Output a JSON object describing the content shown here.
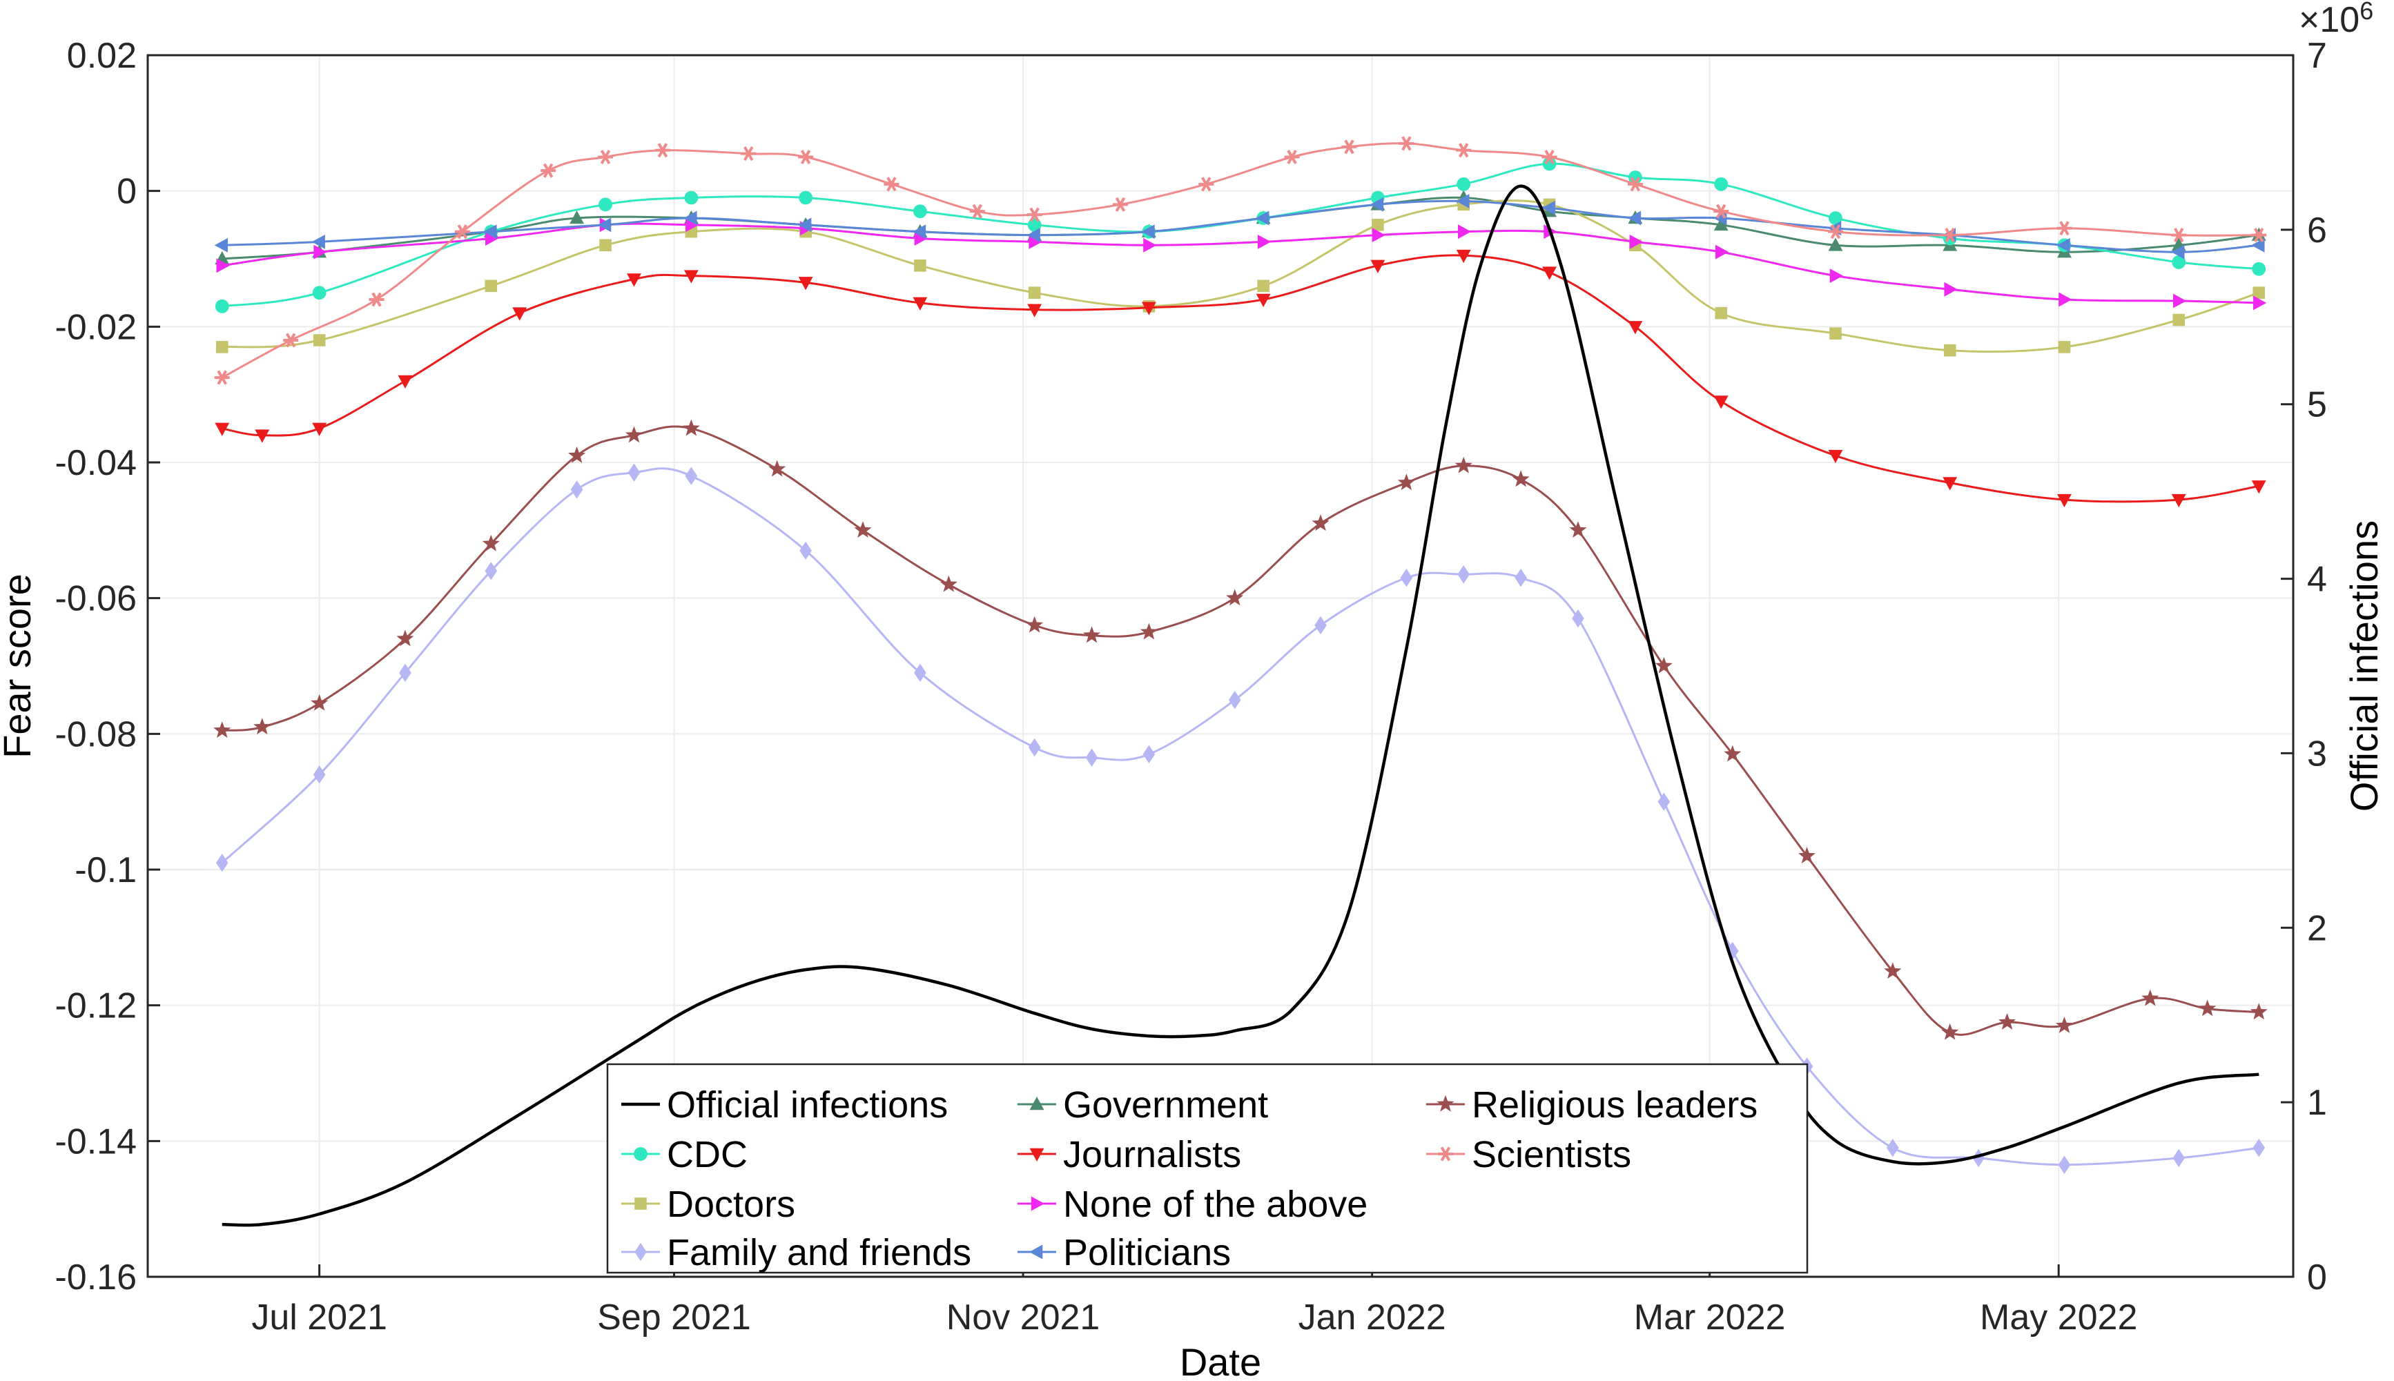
{
  "chart_data": {
    "type": "line",
    "title": "",
    "xlabel": "Date",
    "ylabel": "Fear score",
    "ylabel_right": "Official infections",
    "right_axis_exponent_label": "×10",
    "right_axis_exponent": "6",
    "x_tick_labels": [
      "Jul 2021",
      "Sep 2021",
      "Nov 2021",
      "Jan 2022",
      "Mar 2022",
      "May 2022"
    ],
    "x_tick_days": [
      15,
      77,
      138,
      199,
      258,
      319
    ],
    "xlim_days": [
      -15,
      360
    ],
    "ylim": [
      -0.16,
      0.02
    ],
    "y_ticks": [
      0.02,
      0,
      -0.02,
      -0.04,
      -0.06,
      -0.08,
      -0.1,
      -0.12,
      -0.14,
      -0.16
    ],
    "y_tick_labels": [
      "0.02",
      "0",
      "-0.02",
      "-0.04",
      "-0.06",
      "-0.08",
      "-0.1",
      "-0.12",
      "-0.14",
      "-0.16"
    ],
    "ylim_right": [
      0,
      7
    ],
    "y_ticks_right": [
      0,
      1,
      2,
      3,
      4,
      5,
      6,
      7
    ],
    "y_tick_labels_right": [
      "0",
      "1",
      "2",
      "3",
      "4",
      "5",
      "6",
      "7"
    ],
    "legend_position": "bottom-center",
    "series": [
      {
        "name": "Official infections",
        "axis": "right",
        "color": "#000000",
        "marker": "none",
        "x": [
          -2,
          5,
          15,
          30,
          50,
          70,
          80,
          90,
          100,
          110,
          125,
          140,
          150,
          160,
          168,
          175,
          185,
          195,
          205,
          212,
          218,
          225,
          232,
          242,
          252,
          262,
          272,
          280,
          290,
          300,
          310,
          320,
          340,
          354
        ],
        "values": [
          0.3,
          0.3,
          0.36,
          0.54,
          0.93,
          1.34,
          1.54,
          1.68,
          1.76,
          1.77,
          1.67,
          1.51,
          1.42,
          1.38,
          1.38,
          1.41,
          1.53,
          2.1,
          3.6,
          4.9,
          5.8,
          6.25,
          5.8,
          4.4,
          3.0,
          1.8,
          1.1,
          0.78,
          0.66,
          0.66,
          0.74,
          0.86,
          1.11,
          1.16
        ]
      },
      {
        "name": "Government",
        "axis": "left",
        "color": "#4a8a6e",
        "marker": "triangle-up",
        "x": [
          -2,
          15,
          45,
          60,
          80,
          100,
          120,
          140,
          160,
          180,
          200,
          215,
          230,
          245,
          260,
          280,
          300,
          320,
          340,
          354
        ],
        "values": [
          -0.01,
          -0.009,
          -0.006,
          -0.004,
          -0.004,
          -0.005,
          -0.006,
          -0.0065,
          -0.006,
          -0.004,
          -0.002,
          -0.001,
          -0.003,
          -0.004,
          -0.005,
          -0.008,
          -0.008,
          -0.009,
          -0.008,
          -0.0065
        ]
      },
      {
        "name": "CDC",
        "axis": "left",
        "color": "#2ee8c0",
        "marker": "circle",
        "x": [
          -2,
          15,
          45,
          65,
          80,
          100,
          120,
          140,
          160,
          180,
          200,
          215,
          230,
          245,
          260,
          280,
          300,
          320,
          340,
          354
        ],
        "values": [
          -0.017,
          -0.015,
          -0.006,
          -0.002,
          -0.001,
          -0.001,
          -0.003,
          -0.005,
          -0.006,
          -0.004,
          -0.001,
          0.001,
          0.004,
          0.002,
          0.001,
          -0.004,
          -0.007,
          -0.008,
          -0.0105,
          -0.0115
        ]
      },
      {
        "name": "Doctors",
        "axis": "left",
        "color": "#c5c46a",
        "marker": "square",
        "x": [
          -2,
          15,
          45,
          65,
          80,
          100,
          120,
          140,
          160,
          180,
          200,
          215,
          230,
          245,
          260,
          280,
          300,
          320,
          340,
          354
        ],
        "values": [
          -0.023,
          -0.022,
          -0.014,
          -0.008,
          -0.006,
          -0.006,
          -0.011,
          -0.015,
          -0.017,
          -0.014,
          -0.005,
          -0.002,
          -0.002,
          -0.008,
          -0.018,
          -0.021,
          -0.0235,
          -0.023,
          -0.019,
          -0.015
        ]
      },
      {
        "name": "Family and friends",
        "axis": "left",
        "color": "#b6b6f5",
        "marker": "diamond",
        "x": [
          -2,
          15,
          30,
          45,
          60,
          70,
          80,
          100,
          120,
          140,
          150,
          160,
          175,
          190,
          205,
          215,
          225,
          235,
          250,
          262,
          275,
          290,
          305,
          320,
          340,
          354
        ],
        "values": [
          -0.099,
          -0.086,
          -0.071,
          -0.056,
          -0.044,
          -0.0415,
          -0.042,
          -0.053,
          -0.071,
          -0.082,
          -0.0835,
          -0.083,
          -0.075,
          -0.064,
          -0.057,
          -0.0565,
          -0.057,
          -0.063,
          -0.09,
          -0.112,
          -0.129,
          -0.141,
          -0.1425,
          -0.1435,
          -0.1425,
          -0.141
        ]
      },
      {
        "name": "Journalists",
        "axis": "left",
        "color": "#ec1b1b",
        "marker": "triangle-down",
        "x": [
          -2,
          5,
          15,
          30,
          50,
          70,
          80,
          100,
          120,
          140,
          160,
          180,
          200,
          215,
          230,
          245,
          260,
          280,
          300,
          320,
          340,
          354
        ],
        "values": [
          -0.035,
          -0.036,
          -0.035,
          -0.028,
          -0.018,
          -0.013,
          -0.0125,
          -0.0135,
          -0.0165,
          -0.0175,
          -0.0172,
          -0.016,
          -0.011,
          -0.0095,
          -0.012,
          -0.02,
          -0.031,
          -0.039,
          -0.043,
          -0.0455,
          -0.0455,
          -0.0435
        ]
      },
      {
        "name": "None of the above",
        "axis": "left",
        "color": "#ef28ef",
        "marker": "triangle-right",
        "x": [
          -2,
          15,
          45,
          65,
          80,
          100,
          120,
          140,
          160,
          180,
          200,
          215,
          230,
          245,
          260,
          280,
          300,
          320,
          340,
          354
        ],
        "values": [
          -0.011,
          -0.009,
          -0.007,
          -0.005,
          -0.005,
          -0.0055,
          -0.007,
          -0.0075,
          -0.008,
          -0.0075,
          -0.0065,
          -0.006,
          -0.006,
          -0.0075,
          -0.009,
          -0.0125,
          -0.0145,
          -0.016,
          -0.0162,
          -0.0165
        ]
      },
      {
        "name": "Politicians",
        "axis": "left",
        "color": "#5a86d8",
        "marker": "triangle-left",
        "x": [
          -2,
          15,
          45,
          65,
          80,
          100,
          120,
          140,
          160,
          180,
          200,
          215,
          230,
          245,
          260,
          280,
          300,
          320,
          340,
          354
        ],
        "values": [
          -0.008,
          -0.0075,
          -0.006,
          -0.005,
          -0.004,
          -0.005,
          -0.006,
          -0.0065,
          -0.006,
          -0.004,
          -0.002,
          -0.0015,
          -0.0025,
          -0.004,
          -0.004,
          -0.0055,
          -0.0065,
          -0.008,
          -0.009,
          -0.008
        ]
      },
      {
        "name": "Religious leaders",
        "axis": "left",
        "color": "#9a4e4e",
        "marker": "star",
        "x": [
          -2,
          5,
          15,
          30,
          45,
          60,
          70,
          80,
          95,
          110,
          125,
          140,
          150,
          160,
          175,
          190,
          205,
          215,
          225,
          235,
          250,
          262,
          275,
          290,
          300,
          310,
          320,
          335,
          345,
          354
        ],
        "values": [
          -0.0795,
          -0.079,
          -0.0755,
          -0.066,
          -0.052,
          -0.039,
          -0.036,
          -0.035,
          -0.041,
          -0.05,
          -0.058,
          -0.064,
          -0.0655,
          -0.065,
          -0.06,
          -0.049,
          -0.043,
          -0.0405,
          -0.0425,
          -0.05,
          -0.07,
          -0.083,
          -0.098,
          -0.115,
          -0.124,
          -0.1225,
          -0.123,
          -0.119,
          -0.1205,
          -0.121
        ]
      },
      {
        "name": "Scientists",
        "axis": "left",
        "color": "#f08a8a",
        "marker": "asterisk",
        "x": [
          -2,
          10,
          25,
          40,
          55,
          65,
          75,
          90,
          100,
          115,
          130,
          140,
          155,
          170,
          185,
          195,
          205,
          215,
          230,
          245,
          260,
          280,
          300,
          320,
          340,
          354
        ],
        "values": [
          -0.0275,
          -0.022,
          -0.016,
          -0.006,
          0.003,
          0.005,
          0.006,
          0.0055,
          0.005,
          0.001,
          -0.003,
          -0.0035,
          -0.002,
          0.001,
          0.005,
          0.0065,
          0.007,
          0.006,
          0.005,
          0.001,
          -0.003,
          -0.006,
          -0.0065,
          -0.0055,
          -0.0065,
          -0.0065
        ]
      }
    ],
    "legend_order": [
      "Official infections",
      "CDC",
      "Doctors",
      "Family and friends",
      "Government",
      "Journalists",
      "None of the above",
      "Politicians",
      "Religious leaders",
      "Scientists"
    ]
  }
}
